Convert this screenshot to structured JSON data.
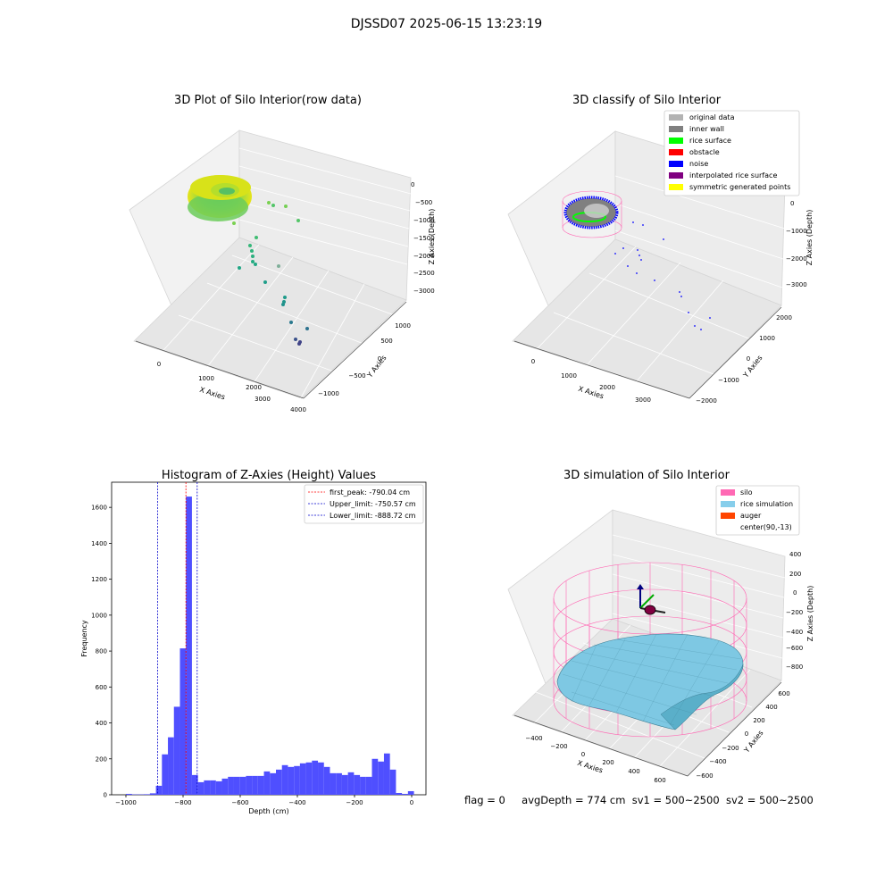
{
  "suptitle": "DJSSD07 2025-06-15 13:23:19",
  "status_line": {
    "flag": "flag = 0",
    "avg_depth": "avgDepth = 774 cm",
    "sv1": "sv1 = 500~2500",
    "sv2": "sv2 = 500~2500"
  },
  "chart_data": [
    {
      "type": "scatter",
      "title": "3D Plot of Silo Interior(row data)",
      "xlabel": "X Axies",
      "ylabel": "Y Axies",
      "zlabel": "Z Axies (Depth)",
      "x_ticks": [
        "0",
        "1000",
        "2000",
        "3000",
        "4000"
      ],
      "y_ticks": [
        "−1000",
        "−500",
        "0",
        "500",
        "1000"
      ],
      "z_ticks": [
        "0",
        "−500",
        "−1000",
        "−1500",
        "−2000",
        "−2500",
        "−3000"
      ],
      "colormap": [
        "#fde725",
        "#7ad151",
        "#22a884",
        "#2a788e",
        "#414487"
      ]
    },
    {
      "type": "scatter",
      "title": "3D classify of Silo Interior",
      "xlabel": "X Axies",
      "ylabel": "Y Axies",
      "zlabel": "Z Axies (Depth)",
      "x_ticks": [
        "0",
        "1000",
        "2000",
        "3000"
      ],
      "y_ticks": [
        "−2000",
        "−1000",
        "0",
        "1000",
        "2000"
      ],
      "z_ticks": [
        "0",
        "−1000",
        "−2000",
        "−3000"
      ],
      "legend_position": "top-right",
      "legend": [
        {
          "label": "original data",
          "color": "#b3b3b3"
        },
        {
          "label": "inner wall",
          "color": "#808080"
        },
        {
          "label": "rice surface",
          "color": "#00ff00"
        },
        {
          "label": "obstacle",
          "color": "#ff0000"
        },
        {
          "label": "noise",
          "color": "#0000ff"
        },
        {
          "label": "interpolated rice surface",
          "color": "#800080"
        },
        {
          "label": "symmetric generated points",
          "color": "#ffff00"
        }
      ]
    },
    {
      "type": "bar",
      "title": "Histogram of Z-Axies (Height) Values",
      "xlabel": "Depth (cm)",
      "ylabel": "Frequency",
      "xlim": [
        -1050,
        50
      ],
      "ylim": [
        0,
        1740
      ],
      "x_ticks": [
        -1000,
        -800,
        -600,
        -400,
        -200,
        0
      ],
      "y_ticks": [
        0,
        200,
        400,
        600,
        800,
        1000,
        1200,
        1400,
        1600
      ],
      "bar_color": "#4f4fff",
      "bins": [
        {
          "x0": -1000,
          "x1": -979,
          "count": 5
        },
        {
          "x0": -979,
          "x1": -958,
          "count": 2
        },
        {
          "x0": -958,
          "x1": -937,
          "count": 2
        },
        {
          "x0": -937,
          "x1": -916,
          "count": 3
        },
        {
          "x0": -916,
          "x1": -895,
          "count": 8
        },
        {
          "x0": -895,
          "x1": -874,
          "count": 50
        },
        {
          "x0": -874,
          "x1": -853,
          "count": 225
        },
        {
          "x0": -853,
          "x1": -832,
          "count": 320
        },
        {
          "x0": -832,
          "x1": -811,
          "count": 490
        },
        {
          "x0": -811,
          "x1": -790,
          "count": 815
        },
        {
          "x0": -790,
          "x1": -769,
          "count": 1660
        },
        {
          "x0": -769,
          "x1": -748,
          "count": 110
        },
        {
          "x0": -748,
          "x1": -727,
          "count": 70
        },
        {
          "x0": -727,
          "x1": -706,
          "count": 80
        },
        {
          "x0": -706,
          "x1": -685,
          "count": 80
        },
        {
          "x0": -685,
          "x1": -664,
          "count": 75
        },
        {
          "x0": -664,
          "x1": -643,
          "count": 90
        },
        {
          "x0": -643,
          "x1": -622,
          "count": 100
        },
        {
          "x0": -622,
          "x1": -601,
          "count": 100
        },
        {
          "x0": -601,
          "x1": -580,
          "count": 100
        },
        {
          "x0": -580,
          "x1": -559,
          "count": 105
        },
        {
          "x0": -559,
          "x1": -538,
          "count": 105
        },
        {
          "x0": -538,
          "x1": -517,
          "count": 105
        },
        {
          "x0": -517,
          "x1": -496,
          "count": 130
        },
        {
          "x0": -496,
          "x1": -475,
          "count": 120
        },
        {
          "x0": -475,
          "x1": -454,
          "count": 140
        },
        {
          "x0": -454,
          "x1": -433,
          "count": 165
        },
        {
          "x0": -433,
          "x1": -412,
          "count": 155
        },
        {
          "x0": -412,
          "x1": -391,
          "count": 160
        },
        {
          "x0": -391,
          "x1": -370,
          "count": 175
        },
        {
          "x0": -370,
          "x1": -349,
          "count": 180
        },
        {
          "x0": -349,
          "x1": -328,
          "count": 190
        },
        {
          "x0": -328,
          "x1": -307,
          "count": 180
        },
        {
          "x0": -307,
          "x1": -286,
          "count": 155
        },
        {
          "x0": -286,
          "x1": -265,
          "count": 120
        },
        {
          "x0": -265,
          "x1": -244,
          "count": 120
        },
        {
          "x0": -244,
          "x1": -223,
          "count": 110
        },
        {
          "x0": -223,
          "x1": -202,
          "count": 125
        },
        {
          "x0": -202,
          "x1": -181,
          "count": 110
        },
        {
          "x0": -181,
          "x1": -160,
          "count": 100
        },
        {
          "x0": -160,
          "x1": -139,
          "count": 100
        },
        {
          "x0": -139,
          "x1": -118,
          "count": 200
        },
        {
          "x0": -118,
          "x1": -97,
          "count": 185
        },
        {
          "x0": -97,
          "x1": -76,
          "count": 230
        },
        {
          "x0": -76,
          "x1": -55,
          "count": 140
        },
        {
          "x0": -55,
          "x1": -34,
          "count": 10
        },
        {
          "x0": -34,
          "x1": -13,
          "count": 5
        },
        {
          "x0": -13,
          "x1": 8,
          "count": 20
        }
      ],
      "vlines": [
        {
          "x": -790.04,
          "color": "#ff0000",
          "label": "first_peak: -790.04 cm"
        },
        {
          "x": -750.57,
          "color": "#0000cc",
          "label": "Upper_limit: -750.57 cm"
        },
        {
          "x": -888.72,
          "color": "#0000cc",
          "label": "Lower_limit: -888.72 cm"
        }
      ],
      "legend_position": "top-right"
    },
    {
      "type": "surface",
      "title": "3D simulation of Silo Interior",
      "xlabel": "X Axies",
      "ylabel": "Y Axies",
      "zlabel": "Z Axies (Depth)",
      "x_ticks": [
        "−400",
        "−200",
        "0",
        "200",
        "400",
        "600"
      ],
      "y_ticks": [
        "−600",
        "−400",
        "−200",
        "0",
        "200",
        "400",
        "600"
      ],
      "z_ticks": [
        "400",
        "200",
        "0",
        "−200",
        "−400",
        "−600",
        "−800"
      ],
      "legend_position": "top-right",
      "legend": [
        {
          "label": "silo",
          "color": "#ff69b4"
        },
        {
          "label": "rice simulation",
          "color": "#87ceeb"
        },
        {
          "label": "auger",
          "color": "#ff4500"
        },
        {
          "label": "center(90,-13)",
          "color": "#ffffff"
        }
      ]
    }
  ]
}
